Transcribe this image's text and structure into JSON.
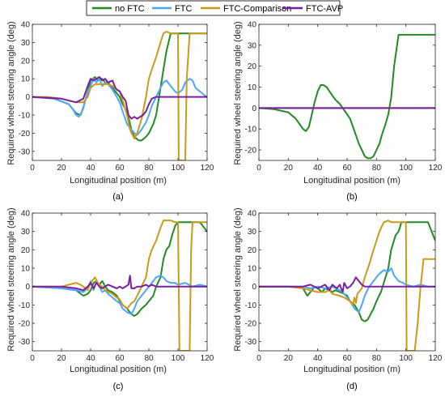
{
  "legend": {
    "entries": [
      {
        "label": "no FTC",
        "color": "#228b22"
      },
      {
        "label": "FTC",
        "color": "#4da6ff"
      },
      {
        "label": "FTC-Comparison",
        "color": "#cc9a1a"
      },
      {
        "label": "FTC-AVP",
        "color": "#7a1fa2"
      }
    ]
  },
  "chart_data": [
    {
      "type": "line",
      "caption": "(a)",
      "xlabel": "Longitudinal position (m)",
      "ylabel": "Required wheel steering angle (deg)",
      "xlim": [
        0,
        120
      ],
      "ylim": [
        -35,
        40
      ],
      "xticks": [
        0,
        20,
        40,
        60,
        80,
        100,
        120
      ],
      "yticks": [
        -30,
        -20,
        -10,
        0,
        10,
        20,
        30,
        40
      ],
      "grid": false,
      "series": [
        {
          "name": "no FTC",
          "color": "#228b22",
          "x": [
            0,
            15,
            25,
            30,
            33,
            35,
            38,
            40,
            43,
            45,
            48,
            50,
            52,
            55,
            58,
            60,
            62,
            65,
            68,
            70,
            73,
            75,
            78,
            80,
            83,
            85,
            88,
            90,
            92,
            95,
            98,
            100,
            105,
            110,
            120
          ],
          "y": [
            0,
            -1,
            -4,
            -9,
            -10,
            -6,
            3,
            9,
            11,
            9,
            10,
            8,
            8,
            5,
            2,
            0,
            -4,
            -8,
            -18,
            -22,
            -24,
            -24,
            -22,
            -20,
            -15,
            -10,
            5,
            15,
            25,
            35,
            35,
            35,
            35,
            35,
            35
          ]
        },
        {
          "name": "FTC",
          "color": "#4da6ff",
          "x": [
            0,
            15,
            25,
            28,
            30,
            32,
            34,
            36,
            38,
            40,
            42,
            44,
            46,
            48,
            50,
            52,
            55,
            58,
            60,
            62,
            65,
            68,
            70,
            72,
            75,
            78,
            80,
            82,
            85,
            88,
            90,
            92,
            95,
            98,
            100,
            103,
            105,
            108,
            110,
            112,
            115,
            118,
            120
          ],
          "y": [
            0,
            -1,
            -4,
            -7,
            -10,
            -11,
            -8,
            -3,
            3,
            6,
            10,
            8,
            10,
            6,
            8,
            7,
            4,
            0,
            -3,
            -8,
            -15,
            -18,
            -20,
            -21,
            -18,
            -14,
            -10,
            -5,
            0,
            5,
            8,
            9,
            6,
            3,
            2,
            4,
            8,
            10,
            9,
            5,
            3,
            1,
            0
          ]
        },
        {
          "name": "FTC-Comparison",
          "color": "#cc9a1a",
          "x": [
            0,
            10,
            20,
            25,
            30,
            35,
            38,
            40,
            43,
            45,
            48,
            50,
            52,
            55,
            58,
            60,
            62,
            65,
            67,
            70,
            72,
            75,
            78,
            80,
            82,
            85,
            88,
            90,
            92,
            95,
            98,
            99,
            100,
            100.5,
            101,
            102,
            103,
            104,
            105,
            106,
            108,
            110,
            112,
            120
          ],
          "y": [
            0,
            0,
            -1,
            -2,
            -3,
            -3,
            0,
            5,
            7,
            7,
            7,
            7,
            7,
            6,
            4,
            3,
            -2,
            -10,
            -18,
            -23,
            -20,
            -12,
            0,
            10,
            15,
            22,
            30,
            35,
            36,
            35,
            35,
            35,
            35,
            -35,
            -35,
            -35,
            -35,
            -35,
            -35,
            10,
            35,
            35,
            35,
            35
          ]
        },
        {
          "name": "FTC-AVP",
          "color": "#7a1fa2",
          "x": [
            0,
            20,
            30,
            35,
            38,
            40,
            42,
            44,
            46,
            48,
            50,
            52,
            55,
            57,
            58,
            60,
            62,
            64,
            66,
            68,
            70,
            72,
            74,
            76,
            78,
            80,
            82,
            85,
            90,
            100,
            110,
            120
          ],
          "y": [
            0,
            -1,
            -3,
            -1,
            6,
            10,
            9,
            10,
            11,
            9,
            10,
            8,
            9,
            5,
            4,
            3,
            0,
            -2,
            -10,
            -12,
            -11,
            -12,
            -11,
            -10,
            -8,
            -4,
            -1,
            0,
            0,
            0,
            0,
            0
          ]
        }
      ]
    },
    {
      "type": "line",
      "caption": "(b)",
      "xlabel": "Longitudinal position (m)",
      "ylabel": "Required wheel steering angle (deg)",
      "xlim": [
        0,
        120
      ],
      "ylim": [
        -25,
        40
      ],
      "xticks": [
        0,
        20,
        40,
        60,
        80,
        100,
        120
      ],
      "yticks": [
        -20,
        -10,
        0,
        10,
        20,
        30,
        40
      ],
      "grid": false,
      "series": [
        {
          "name": "no FTC",
          "color": "#228b22",
          "x": [
            0,
            10,
            20,
            25,
            30,
            32,
            34,
            36,
            38,
            40,
            42,
            44,
            46,
            48,
            50,
            52,
            55,
            58,
            60,
            62,
            64,
            66,
            68,
            70,
            72,
            74,
            76,
            78,
            80,
            82,
            84,
            86,
            88,
            90,
            92,
            95,
            100,
            110,
            120
          ],
          "y": [
            0,
            -0.5,
            -2,
            -5,
            -10,
            -11,
            -9,
            -3,
            3,
            8,
            11,
            11,
            10,
            8,
            6,
            4,
            2,
            -1,
            -3,
            -5,
            -9,
            -13,
            -17,
            -20,
            -23,
            -24,
            -24,
            -23,
            -20,
            -17,
            -12,
            -8,
            -3,
            5,
            20,
            35,
            35,
            35,
            35
          ]
        },
        {
          "name": "FTC",
          "color": "#4da6ff",
          "x": [
            0,
            120
          ],
          "y": [
            0,
            0
          ]
        },
        {
          "name": "FTC-Comparison",
          "color": "#cc9a1a",
          "x": [
            0,
            120
          ],
          "y": [
            0,
            0
          ]
        },
        {
          "name": "FTC-AVP",
          "color": "#7a1fa2",
          "x": [
            0,
            120
          ],
          "y": [
            0,
            0
          ]
        }
      ]
    },
    {
      "type": "line",
      "caption": "(c)",
      "xlabel": "Longitudinal position (m)",
      "ylabel": "Required wheel steering angle (deg)",
      "xlim": [
        0,
        120
      ],
      "ylim": [
        -35,
        40
      ],
      "xticks": [
        0,
        20,
        40,
        60,
        80,
        100,
        120
      ],
      "yticks": [
        -30,
        -20,
        -10,
        0,
        10,
        20,
        30,
        40
      ],
      "grid": false,
      "series": [
        {
          "name": "no FTC",
          "color": "#228b22",
          "x": [
            0,
            20,
            30,
            35,
            38,
            40,
            42,
            44,
            46,
            48,
            50,
            52,
            55,
            58,
            60,
            62,
            65,
            68,
            70,
            72,
            75,
            78,
            80,
            83,
            85,
            88,
            90,
            92,
            94,
            96,
            98,
            100,
            105,
            110,
            115,
            120
          ],
          "y": [
            0,
            -1,
            -2,
            -5,
            -4,
            -2,
            2,
            3,
            1,
            3,
            0,
            -2,
            -3,
            -5,
            -8,
            -10,
            -12,
            -15,
            -16,
            -15,
            -12,
            -10,
            -8,
            -5,
            0,
            5,
            15,
            20,
            22,
            28,
            33,
            35,
            35,
            35,
            35,
            30
          ]
        },
        {
          "name": "FTC",
          "color": "#4da6ff",
          "x": [
            0,
            20,
            30,
            35,
            38,
            40,
            42,
            44,
            46,
            48,
            50,
            52,
            55,
            58,
            60,
            62,
            65,
            68,
            70,
            72,
            75,
            78,
            80,
            82,
            85,
            88,
            90,
            92,
            95,
            98,
            100,
            105,
            110,
            115,
            120
          ],
          "y": [
            0,
            -1,
            -2,
            -3,
            -1,
            3,
            -2,
            3,
            0,
            -3,
            -2,
            -4,
            -6,
            -8,
            -9,
            -12,
            -14,
            -15,
            -12,
            -8,
            -5,
            -2,
            0,
            2,
            5,
            6,
            5,
            3,
            2,
            2,
            1,
            2,
            0,
            1,
            0
          ]
        },
        {
          "name": "FTC-Comparison",
          "color": "#cc9a1a",
          "x": [
            0,
            20,
            25,
            30,
            33,
            35,
            38,
            40,
            43,
            45,
            48,
            50,
            55,
            58,
            60,
            62,
            65,
            68,
            70,
            72,
            75,
            78,
            80,
            82,
            85,
            88,
            90,
            92,
            95,
            98,
            100,
            101,
            102,
            103,
            104,
            105,
            106,
            107,
            108,
            109,
            110,
            112,
            120
          ],
          "y": [
            0,
            0,
            1,
            2,
            1,
            0,
            -2,
            2,
            5,
            2,
            0,
            -2,
            -4,
            -6,
            -7,
            -10,
            -12,
            -9,
            -8,
            -5,
            0,
            5,
            15,
            20,
            25,
            32,
            36,
            36,
            36,
            35,
            35,
            -35,
            -35,
            -35,
            -35,
            -35,
            -35,
            -35,
            -35,
            20,
            35,
            35,
            35
          ]
        },
        {
          "name": "FTC-AVP",
          "color": "#7a1fa2",
          "x": [
            0,
            20,
            30,
            35,
            38,
            40,
            42,
            44,
            46,
            48,
            50,
            52,
            55,
            58,
            60,
            62,
            64,
            66,
            67,
            68,
            70,
            72,
            75,
            78,
            80,
            82,
            85,
            90,
            95,
            100,
            110,
            120
          ],
          "y": [
            0,
            0,
            -1,
            -2,
            0,
            2,
            -1,
            2,
            0,
            -1,
            0,
            1,
            0,
            -1,
            0,
            -1,
            0,
            1,
            6,
            -1,
            -1,
            0,
            0,
            1,
            0,
            1,
            0,
            0,
            0,
            0,
            0,
            0
          ]
        }
      ]
    },
    {
      "type": "line",
      "caption": "(d)",
      "xlabel": "Longitudinal position (m)",
      "ylabel": "Required wheel steering angle (deg)",
      "xlim": [
        0,
        120
      ],
      "ylim": [
        -35,
        40
      ],
      "xticks": [
        0,
        20,
        40,
        60,
        80,
        100,
        120
      ],
      "yticks": [
        -30,
        -20,
        -10,
        0,
        10,
        20,
        30,
        40
      ],
      "grid": false,
      "series": [
        {
          "name": "no FTC",
          "color": "#228b22",
          "x": [
            0,
            20,
            30,
            33,
            35,
            38,
            40,
            43,
            45,
            48,
            50,
            52,
            55,
            58,
            60,
            62,
            65,
            68,
            70,
            72,
            74,
            76,
            78,
            80,
            83,
            85,
            88,
            90,
            93,
            95,
            97,
            100,
            105,
            110,
            115,
            120
          ],
          "y": [
            0,
            0,
            -1,
            -5,
            -3,
            0,
            -1,
            -3,
            -1,
            -2,
            -3,
            -2,
            -3,
            -4,
            -5,
            -8,
            -10,
            -14,
            -18,
            -19,
            -18,
            -15,
            -12,
            -8,
            -3,
            2,
            10,
            20,
            28,
            30,
            35,
            35,
            35,
            35,
            35,
            25
          ]
        },
        {
          "name": "FTC",
          "color": "#4da6ff",
          "x": [
            0,
            20,
            30,
            35,
            40,
            45,
            50,
            55,
            58,
            60,
            62,
            65,
            68,
            70,
            72,
            75,
            78,
            80,
            82,
            85,
            88,
            90,
            92,
            95,
            98,
            100,
            105,
            110,
            115,
            120
          ],
          "y": [
            0,
            0,
            0,
            -1,
            0,
            -1,
            0,
            -2,
            -4,
            -6,
            -8,
            -12,
            -14,
            -10,
            -5,
            0,
            3,
            5,
            7,
            9,
            8,
            10,
            6,
            3,
            2,
            1,
            0,
            1,
            0,
            0
          ]
        },
        {
          "name": "FTC-Comparison",
          "color": "#cc9a1a",
          "x": [
            0,
            20,
            30,
            35,
            40,
            45,
            48,
            50,
            55,
            58,
            60,
            62,
            64,
            65,
            66,
            67,
            68,
            70,
            72,
            75,
            78,
            80,
            82,
            85,
            88,
            90,
            92,
            95,
            98,
            100,
            100.5,
            101,
            102,
            104,
            106,
            108,
            110,
            112,
            120
          ],
          "y": [
            0,
            0,
            -1,
            -2,
            -3,
            -3,
            -2,
            -4,
            -5,
            -6,
            -7,
            -8,
            -10,
            -6,
            -9,
            -4,
            -3,
            -1,
            5,
            12,
            20,
            25,
            30,
            35,
            36,
            35,
            35,
            35,
            35,
            35,
            -35,
            -35,
            -35,
            -35,
            -35,
            -20,
            0,
            15,
            15
          ]
        },
        {
          "name": "FTC-AVP",
          "color": "#7a1fa2",
          "x": [
            0,
            20,
            30,
            35,
            40,
            45,
            48,
            50,
            53,
            55,
            57,
            58,
            60,
            62,
            64,
            66,
            68,
            70,
            72,
            75,
            80,
            85,
            90,
            100,
            110,
            120
          ],
          "y": [
            0,
            0,
            0,
            1,
            -1,
            1,
            -2,
            1,
            -1,
            1,
            -3,
            2,
            -1,
            0,
            2,
            5,
            3,
            1,
            0,
            0,
            0,
            0,
            0,
            0,
            0,
            0
          ]
        }
      ]
    }
  ]
}
